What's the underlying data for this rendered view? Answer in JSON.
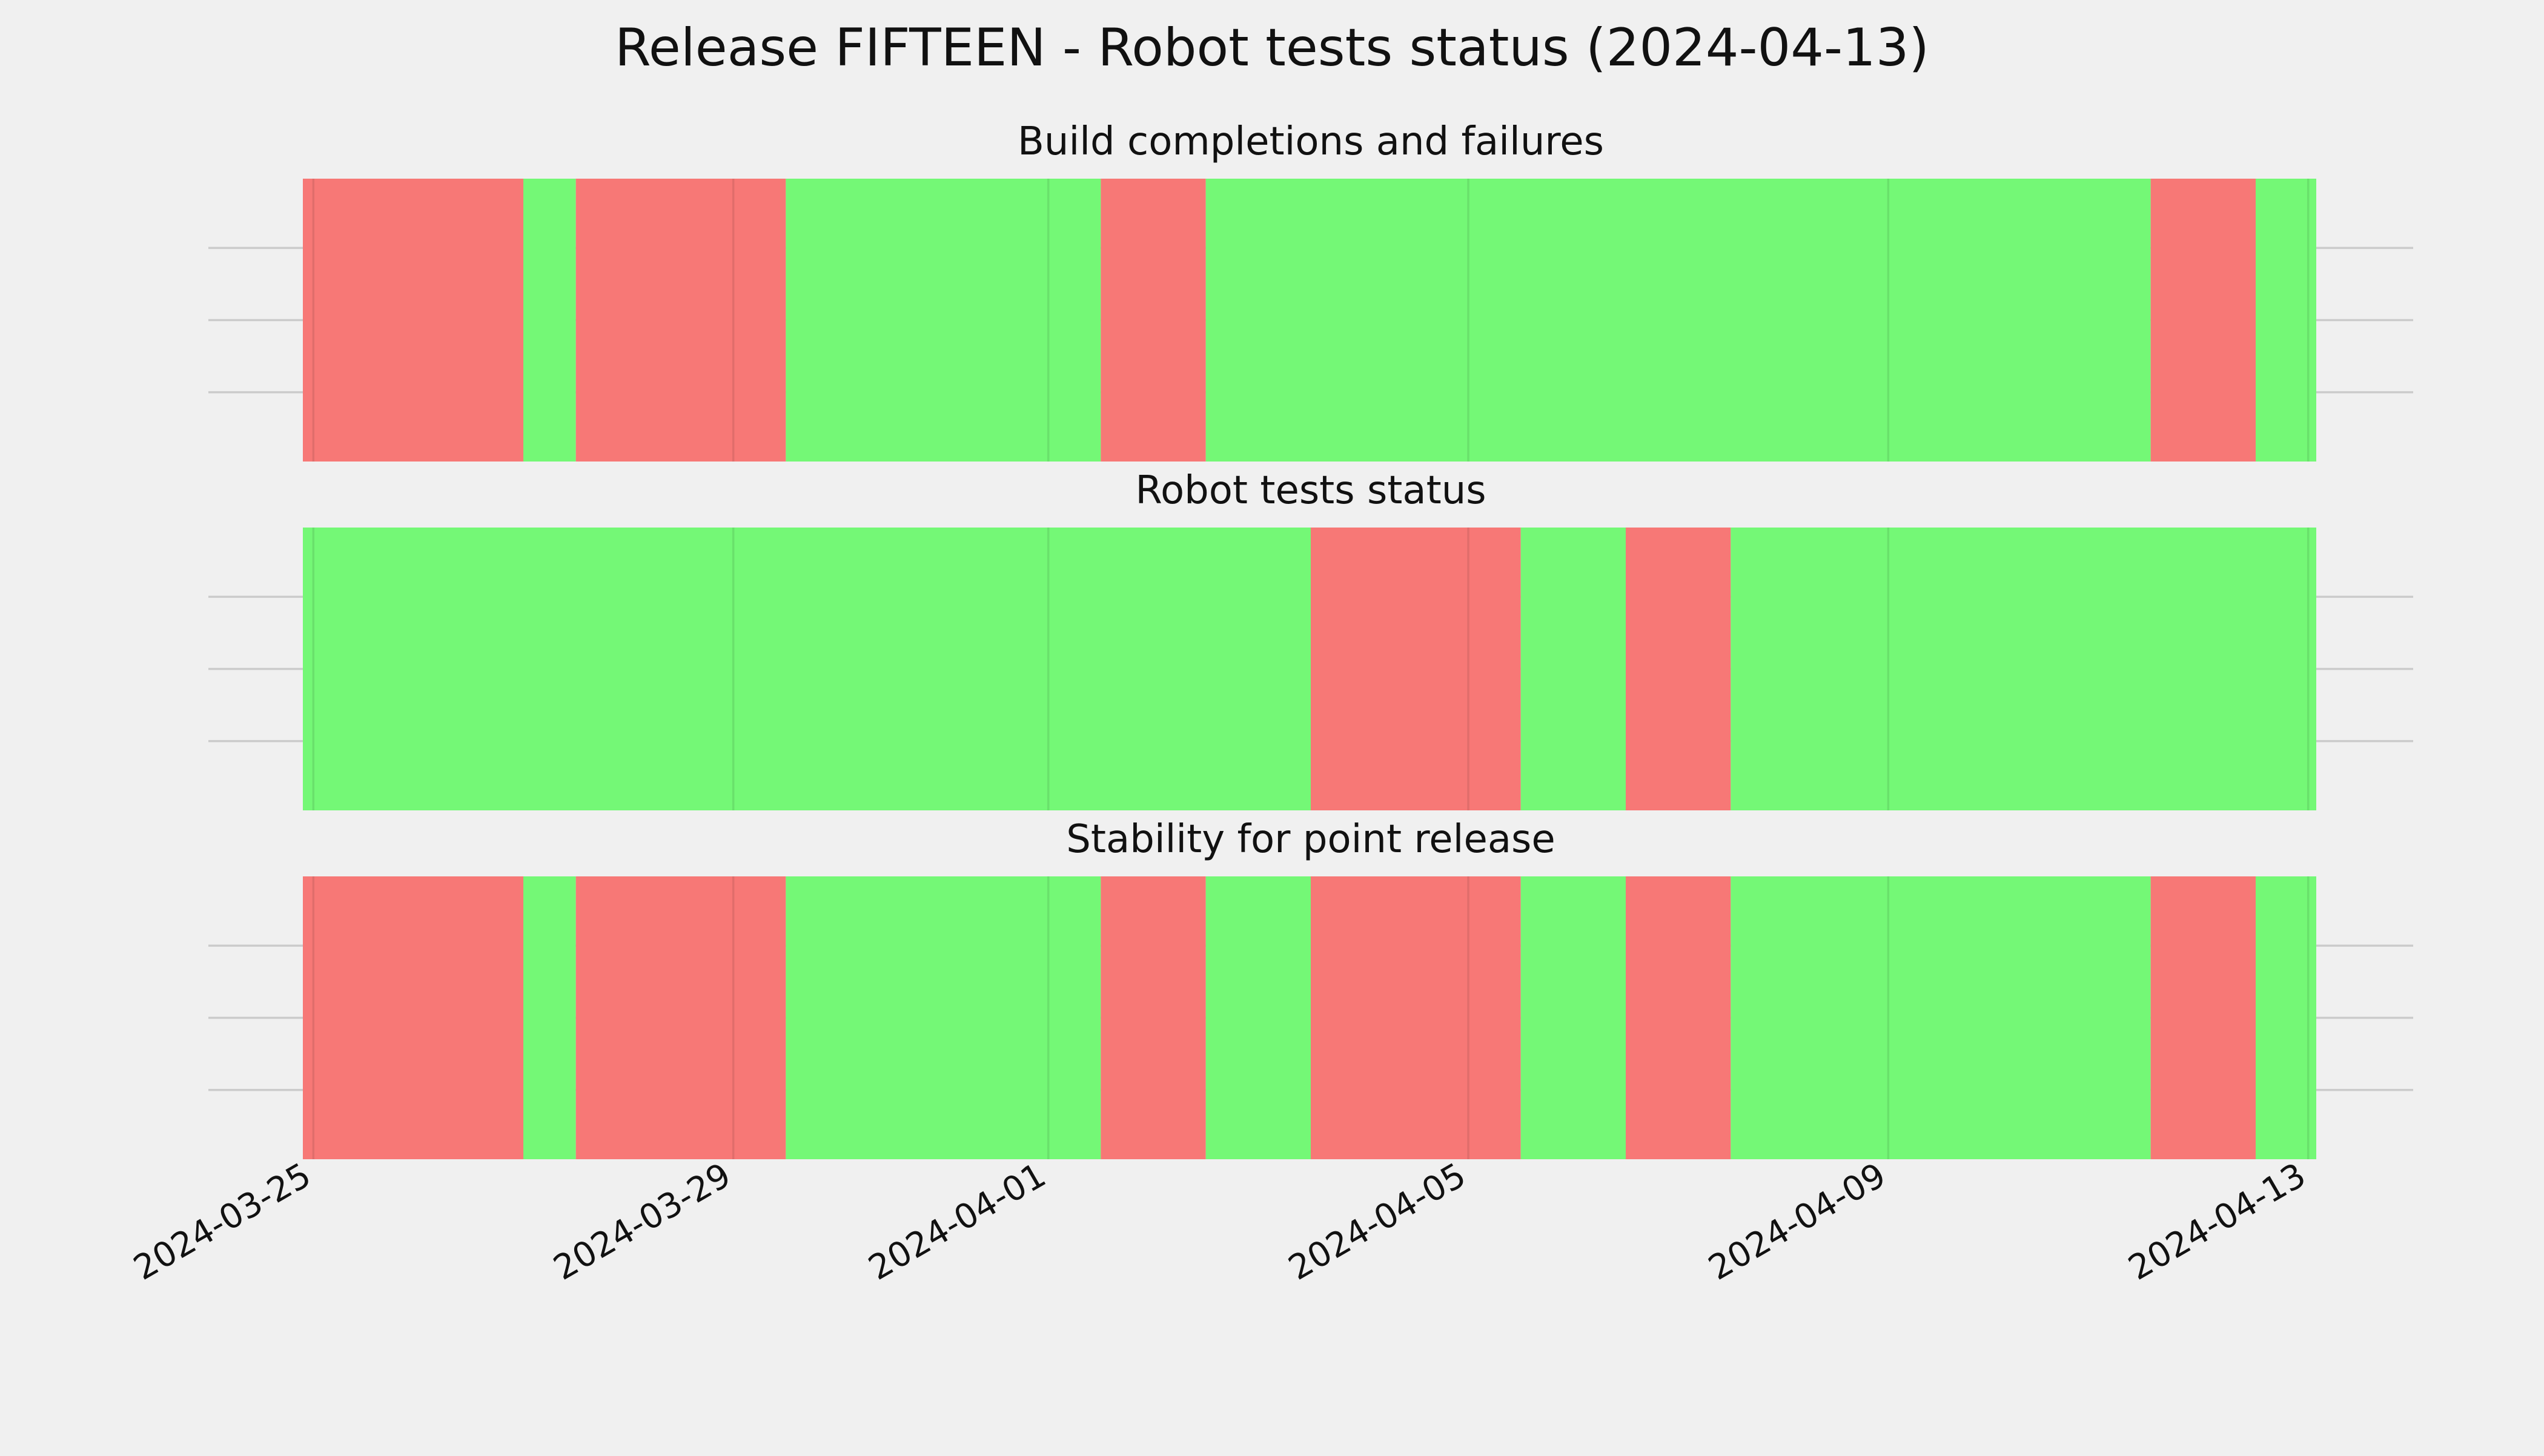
{
  "chart_data": {
    "type": "timeline",
    "title": "Release FIFTEEN - Robot tests status (2024-04-13)",
    "x_range": [
      "2024-03-24",
      "2024-04-14"
    ],
    "x_ticks": [
      "2024-03-25",
      "2024-03-29",
      "2024-04-01",
      "2024-04-05",
      "2024-04-09",
      "2024-04-13"
    ],
    "grid": true,
    "colors": {
      "pass": "#74f876",
      "fail": "#f77876"
    },
    "panels": [
      {
        "name": "Build completions and failures",
        "segments": [
          {
            "start": "2024-03-23T12:00",
            "end": "2024-03-27",
            "status": "fail"
          },
          {
            "start": "2024-03-27",
            "end": "2024-03-27T12:00",
            "status": "pass"
          },
          {
            "start": "2024-03-27T12:00",
            "end": "2024-03-29T12:00",
            "status": "fail"
          },
          {
            "start": "2024-03-29T12:00",
            "end": "2024-04-01T12:00",
            "status": "pass"
          },
          {
            "start": "2024-04-01T12:00",
            "end": "2024-04-02T12:00",
            "status": "fail"
          },
          {
            "start": "2024-04-02T12:00",
            "end": "2024-04-11T12:00",
            "status": "pass"
          },
          {
            "start": "2024-04-11T12:00",
            "end": "2024-04-12T12:00",
            "status": "fail"
          },
          {
            "start": "2024-04-12T12:00",
            "end": "2024-04-14T02:00",
            "status": "pass"
          }
        ]
      },
      {
        "name": "Robot tests status",
        "segments": [
          {
            "start": "2024-03-23T12:00",
            "end": "2024-04-03T12:00",
            "status": "pass"
          },
          {
            "start": "2024-04-03T12:00",
            "end": "2024-04-05T12:00",
            "status": "fail"
          },
          {
            "start": "2024-04-05T12:00",
            "end": "2024-04-06T12:00",
            "status": "pass"
          },
          {
            "start": "2024-04-06T12:00",
            "end": "2024-04-07T12:00",
            "status": "fail"
          },
          {
            "start": "2024-04-07T12:00",
            "end": "2024-04-13T12:00",
            "status": "pass"
          },
          {
            "start": "2024-04-13T12:00",
            "end": "2024-04-14T02:00",
            "status": "fail"
          }
        ]
      },
      {
        "name": "Stability for point release",
        "segments": [
          {
            "start": "2024-03-23T12:00",
            "end": "2024-03-27",
            "status": "fail"
          },
          {
            "start": "2024-03-27",
            "end": "2024-03-27T12:00",
            "status": "pass"
          },
          {
            "start": "2024-03-27T12:00",
            "end": "2024-03-29T12:00",
            "status": "fail"
          },
          {
            "start": "2024-03-29T12:00",
            "end": "2024-04-01T12:00",
            "status": "pass"
          },
          {
            "start": "2024-04-01T12:00",
            "end": "2024-04-02T12:00",
            "status": "fail"
          },
          {
            "start": "2024-04-02T12:00",
            "end": "2024-04-03T12:00",
            "status": "pass"
          },
          {
            "start": "2024-04-03T12:00",
            "end": "2024-04-05T12:00",
            "status": "fail"
          },
          {
            "start": "2024-04-05T12:00",
            "end": "2024-04-06T12:00",
            "status": "pass"
          },
          {
            "start": "2024-04-06T12:00",
            "end": "2024-04-07T12:00",
            "status": "fail"
          },
          {
            "start": "2024-04-07T12:00",
            "end": "2024-04-11T12:00",
            "status": "pass"
          },
          {
            "start": "2024-04-11T12:00",
            "end": "2024-04-12T12:00",
            "status": "fail"
          },
          {
            "start": "2024-04-12T12:00",
            "end": "2024-04-13T12:00",
            "status": "pass"
          },
          {
            "start": "2024-04-13T12:00",
            "end": "2024-04-14T02:00",
            "status": "fail"
          }
        ]
      }
    ]
  }
}
